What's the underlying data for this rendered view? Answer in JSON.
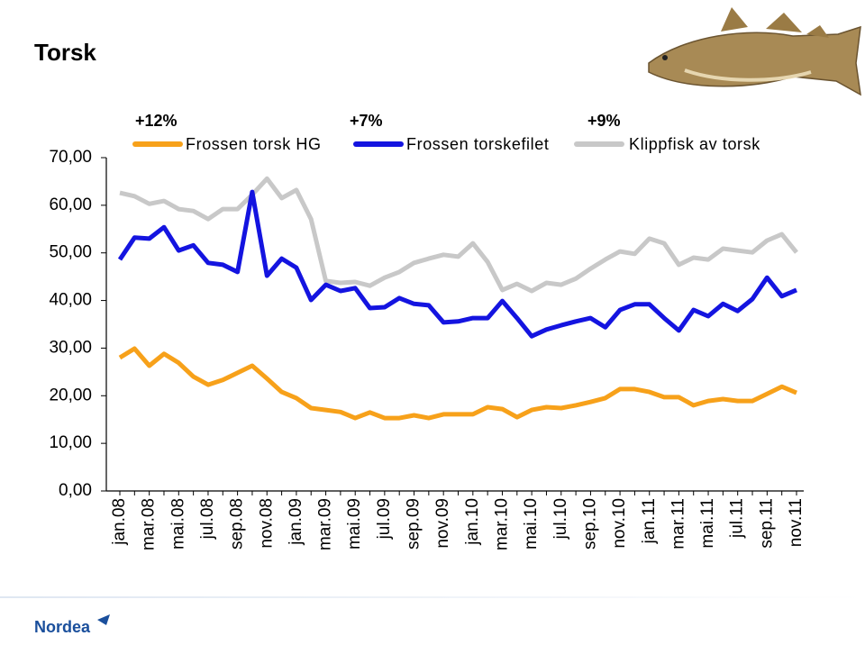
{
  "chart_data": {
    "type": "line",
    "title": "Torsk",
    "categories": [
      "jan.08",
      null,
      "mar.08",
      null,
      "mai.08",
      null,
      "jul.08",
      null,
      "sep.08",
      null,
      "nov.08",
      null,
      "jan.09",
      null,
      "mar.09",
      null,
      "mai.09",
      null,
      "jul.09",
      null,
      "sep.09",
      null,
      "nov.09",
      null,
      "jan.10",
      null,
      "mar.10",
      null,
      "mai.10",
      null,
      "jul.10",
      null,
      "sep.10",
      null,
      "nov.10",
      null,
      "jan.11",
      null,
      "mar.11",
      null,
      "mai.11",
      null,
      "jul.11",
      null,
      "sep.11",
      null,
      "nov.11"
    ],
    "series": [
      {
        "name": "Frossen torsk HG",
        "change": "+12%",
        "color": "#f7a11a",
        "values": [
          28.0,
          29.9,
          26.3,
          28.8,
          26.9,
          24.0,
          22.3,
          23.3,
          24.8,
          26.3,
          23.6,
          20.8,
          19.5,
          17.4,
          17.0,
          16.6,
          15.3,
          16.5,
          15.3,
          15.3,
          15.9,
          15.3,
          16.1,
          16.1,
          16.1,
          17.6,
          17.2,
          15.5,
          17.0,
          17.6,
          17.4,
          18.0,
          18.7,
          19.5,
          21.4,
          21.4,
          20.8,
          19.7,
          19.7,
          18.0,
          18.9,
          19.3,
          18.9,
          18.9,
          20.4,
          21.9,
          20.6
        ]
      },
      {
        "name": "Frossen torskefilet",
        "change": "+7%",
        "color": "#1414e0",
        "values": [
          48.6,
          53.2,
          53.0,
          55.4,
          50.5,
          51.6,
          47.9,
          47.5,
          46.0,
          62.8,
          45.2,
          48.8,
          46.9,
          40.1,
          43.3,
          42.0,
          42.6,
          38.4,
          38.6,
          40.5,
          39.3,
          39.0,
          35.4,
          35.6,
          36.3,
          36.3,
          39.9,
          36.3,
          32.5,
          33.9,
          34.8,
          35.6,
          36.3,
          34.4,
          38.0,
          39.2,
          39.2,
          36.3,
          33.7,
          38.0,
          36.7,
          39.3,
          37.8,
          40.3,
          44.8,
          40.9,
          42.2
        ]
      },
      {
        "name": "Klippfisk av torsk",
        "change": "+9%",
        "color": "#c8c8c8",
        "values": [
          62.6,
          61.9,
          60.3,
          60.9,
          59.2,
          58.8,
          57.1,
          59.2,
          59.2,
          62.2,
          65.6,
          61.5,
          63.2,
          57.1,
          44.1,
          43.7,
          43.9,
          43.1,
          44.8,
          46.0,
          47.9,
          48.8,
          49.6,
          49.2,
          52.0,
          48.1,
          42.2,
          43.5,
          42.0,
          43.7,
          43.3,
          44.6,
          46.7,
          48.6,
          50.3,
          49.8,
          53.0,
          52.0,
          47.5,
          49.0,
          48.6,
          50.9,
          50.5,
          50.1,
          52.6,
          53.9,
          50.1
        ]
      }
    ],
    "ylim": [
      0,
      70
    ],
    "yticks": [
      {
        "value": 0,
        "label": "0,00"
      },
      {
        "value": 10,
        "label": "10,00"
      },
      {
        "value": 20,
        "label": "20,00"
      },
      {
        "value": 30,
        "label": "30,00"
      },
      {
        "value": 40,
        "label": "40,00"
      },
      {
        "value": 50,
        "label": "50,00"
      },
      {
        "value": 60,
        "label": "60,00"
      },
      {
        "value": 70,
        "label": "70,00"
      }
    ],
    "grid": false
  },
  "footer": {
    "logo": "Nordea"
  }
}
